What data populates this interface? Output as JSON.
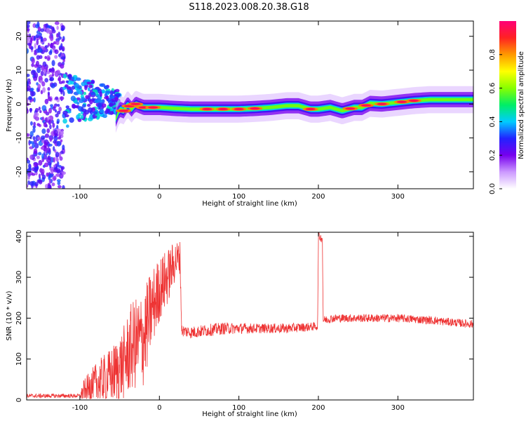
{
  "figure": {
    "title": "S118.2023.008.20.38.G18"
  },
  "chart_data": [
    {
      "type": "heatmap",
      "xlabel": "Height of straight line (km)",
      "ylabel": "Frequency (Hz)",
      "xlim": [
        -167,
        395
      ],
      "ylim": [
        -25,
        24.5
      ],
      "xticks": [
        -100,
        0,
        100,
        200,
        300
      ],
      "yticks": [
        -20,
        -10,
        0,
        10,
        20
      ],
      "ridge": {
        "x": [
          -55,
          -50,
          -45,
          -40,
          -35,
          -30,
          -20,
          -10,
          0,
          20,
          40,
          60,
          80,
          100,
          120,
          140,
          160,
          175,
          190,
          200,
          215,
          230,
          245,
          255,
          265,
          280,
          300,
          320,
          340,
          360,
          395
        ],
        "hz": [
          -4.5,
          -1.5,
          -2.0,
          0.0,
          -1.5,
          0.0,
          -1.0,
          -1.0,
          -1.0,
          -1.3,
          -1.5,
          -1.5,
          -1.5,
          -1.5,
          -1.3,
          -1.0,
          -0.5,
          -0.5,
          -1.5,
          -1.5,
          -1.0,
          -2.0,
          -1.0,
          -1.0,
          0.2,
          0.0,
          0.5,
          1.0,
          1.3,
          1.3,
          1.3
        ]
      },
      "grid": false
    },
    {
      "type": "line",
      "xlabel": "Height of straight line (km)",
      "ylabel": "SNR (10 * v/v)",
      "xlim": [
        -167,
        395
      ],
      "ylim": [
        0,
        410
      ],
      "xticks": [
        -100,
        0,
        100,
        200,
        300
      ],
      "yticks": [
        0,
        100,
        200,
        300,
        400
      ],
      "color": "#ee3333",
      "envelope": {
        "x": [
          -167,
          -100,
          -95,
          -80,
          -60,
          -45,
          -35,
          -20,
          -10,
          0,
          10,
          20,
          26,
          28,
          40,
          80,
          120,
          160,
          199,
          200,
          205,
          206,
          220,
          260,
          300,
          340,
          395
        ],
        "mean": [
          10,
          10,
          20,
          40,
          60,
          90,
          130,
          150,
          220,
          270,
          300,
          340,
          350,
          170,
          165,
          175,
          175,
          175,
          180,
          400,
          395,
          195,
          200,
          200,
          200,
          195,
          185
        ],
        "spread": [
          5,
          5,
          30,
          50,
          70,
          90,
          110,
          120,
          100,
          80,
          70,
          50,
          40,
          15,
          15,
          15,
          12,
          12,
          10,
          10,
          10,
          10,
          10,
          10,
          10,
          10,
          10
        ]
      },
      "grid": false
    }
  ],
  "colorbar": {
    "label": "Normalized spectral amplitude",
    "range": [
      0,
      1
    ],
    "ticks": [
      "0.0",
      "0.2",
      "0.4",
      "0.6",
      "0.8"
    ],
    "tick_values": [
      0,
      0.2,
      0.4,
      0.6,
      0.8
    ],
    "colors": [
      "#ffffff",
      "#cc99ff",
      "#7700ee",
      "#2222ff",
      "#00ccff",
      "#00ee66",
      "#88ff00",
      "#ffff00",
      "#ff9900",
      "#ff2222",
      "#ff0077"
    ]
  }
}
